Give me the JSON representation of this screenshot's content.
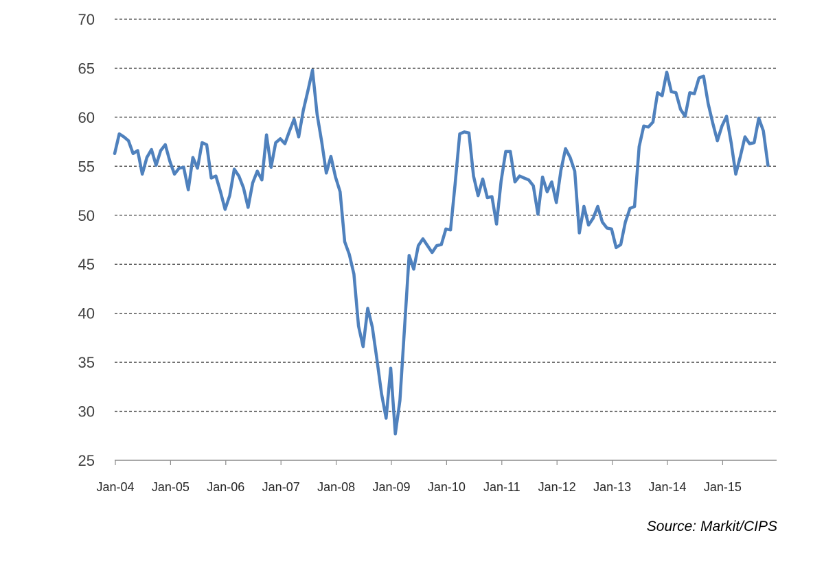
{
  "chart_data": {
    "type": "line",
    "title": "",
    "xlabel": "",
    "ylabel": "",
    "ylim": [
      25,
      70
    ],
    "yticks": [
      25,
      30,
      35,
      40,
      45,
      50,
      55,
      60,
      65,
      70
    ],
    "xtick_labels": [
      "Jan-04",
      "Jan-05",
      "Jan-06",
      "Jan-07",
      "Jan-08",
      "Jan-09",
      "Jan-10",
      "Jan-11",
      "Jan-12",
      "Jan-13",
      "Jan-14",
      "Jan-15"
    ],
    "x_start": "Jan-04",
    "x_end": "Dec-15",
    "grid": true,
    "legend": "none",
    "series": [
      {
        "color": "#4f81bd",
        "values": [
          56.3,
          58.3,
          58.0,
          57.6,
          56.3,
          56.6,
          54.2,
          55.9,
          56.7,
          55.1,
          56.6,
          57.2,
          55.5,
          54.2,
          54.8,
          54.9,
          52.6,
          55.9,
          54.8,
          57.4,
          57.2,
          53.8,
          54.0,
          52.4,
          50.6,
          52.0,
          54.7,
          54.0,
          52.8,
          50.8,
          53.3,
          54.5,
          53.6,
          58.2,
          54.9,
          57.4,
          57.8,
          57.3,
          58.6,
          59.8,
          58.0,
          60.7,
          62.7,
          64.8,
          60.3,
          57.5,
          54.3,
          56.0,
          53.9,
          52.4,
          47.3,
          46.0,
          44.0,
          38.7,
          36.6,
          40.5,
          38.6,
          35.3,
          31.8,
          29.3,
          34.4,
          27.7,
          31.1,
          38.5,
          45.9,
          44.5,
          46.9,
          47.6,
          46.9,
          46.2,
          46.9,
          47.0,
          48.6,
          48.5,
          53.2,
          58.3,
          58.5,
          58.4,
          54.0,
          52.0,
          53.7,
          51.8,
          51.9,
          49.1,
          53.5,
          56.5,
          56.5,
          53.4,
          54.0,
          53.8,
          53.6,
          53.0,
          50.1,
          53.9,
          52.4,
          53.4,
          51.3,
          54.6,
          56.8,
          55.9,
          54.5,
          48.2,
          50.9,
          49.0,
          49.7,
          50.9,
          49.3,
          48.7,
          48.6,
          46.7,
          47.0,
          49.3,
          50.7,
          50.9,
          57.0,
          59.1,
          59.0,
          59.5,
          62.5,
          62.2,
          64.6,
          62.6,
          62.5,
          60.8,
          60.1,
          62.5,
          62.4,
          64.0,
          64.2,
          61.4,
          59.4,
          57.6,
          59.1,
          60.1,
          57.4,
          54.2,
          56.0,
          58.0,
          57.3,
          57.4,
          59.9,
          58.6,
          55.1
        ]
      }
    ]
  },
  "source": "Source: Markit/CIPS"
}
